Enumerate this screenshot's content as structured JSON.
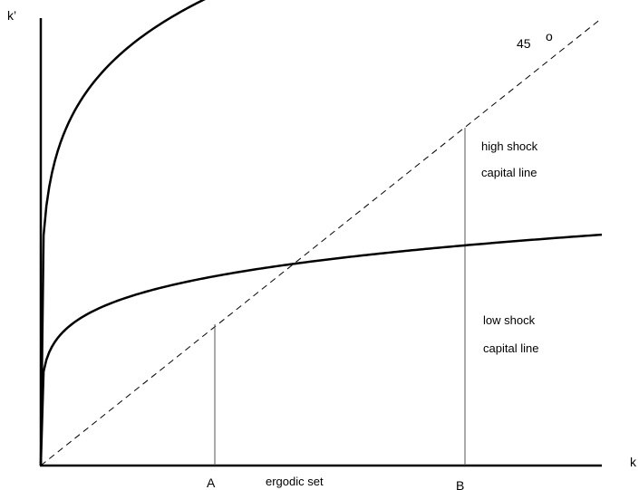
{
  "axes": {
    "y_label": "k’",
    "x_label": "k"
  },
  "diagonal": {
    "label_number": "45",
    "label_degree": "o"
  },
  "curves": {
    "high_label_line1": "high shock",
    "high_label_line2": "capital line",
    "low_label_line1": "low shock",
    "low_label_line2": "capital line"
  },
  "markers": {
    "a_label": "A",
    "b_label": "B",
    "set_label": "ergodic set"
  }
}
